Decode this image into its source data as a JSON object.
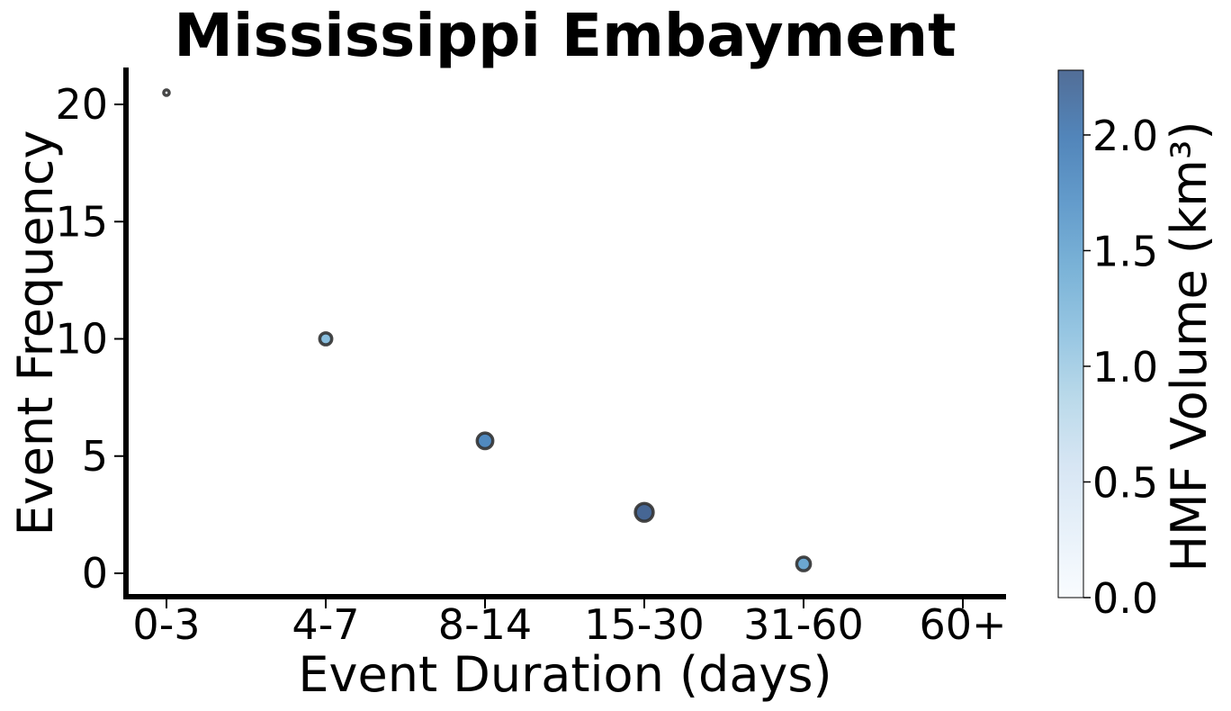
{
  "chart_data": {
    "type": "scatter",
    "title": "Mississippi Embayment",
    "xlabel": "Event Duration (days)",
    "ylabel": "Event Frequency",
    "categories": [
      "0-3",
      "4-7",
      "8-14",
      "15-30",
      "31-60",
      "60+"
    ],
    "yticks": [
      "0",
      "5",
      "10",
      "15",
      "20"
    ],
    "ylim": [
      -1,
      21.5
    ],
    "grid": false,
    "points": [
      {
        "x": "0-3",
        "y": 20.5,
        "volume": 0.02
      },
      {
        "x": "4-7",
        "y": 10.0,
        "volume": 1.2
      },
      {
        "x": "8-14",
        "y": 5.65,
        "volume": 1.85
      },
      {
        "x": "15-30",
        "y": 2.6,
        "volume": 2.25
      },
      {
        "x": "31-60",
        "y": 0.4,
        "volume": 1.5
      }
    ],
    "colorbar": {
      "label": "HMF Volume (km³)",
      "range": [
        0.0,
        2.28
      ],
      "ticks": [
        "0.0",
        "0.5",
        "1.0",
        "1.5",
        "2.0"
      ],
      "colormap": "Blues",
      "colors": {
        "low": "#f7fbff",
        "mid": "#6baed6",
        "high": "#08306b"
      }
    }
  }
}
